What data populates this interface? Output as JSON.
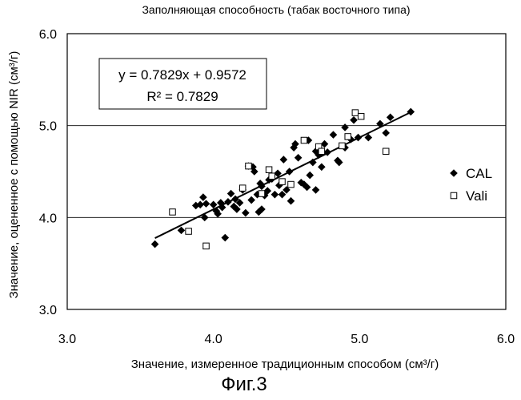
{
  "figure_label": "Фиг.3",
  "chart_data": {
    "type": "scatter",
    "title": "Заполняющая способность (табак восточного типа)",
    "xlabel": "Значение, измеренное традиционным способом (см³/г)",
    "ylabel": "Значение, оцененное с помощью NIR (см³/г)",
    "xlim": [
      3.0,
      6.0
    ],
    "ylim": [
      3.0,
      6.0
    ],
    "x_ticks": [
      "3.0",
      "4.0",
      "5.0",
      "6.0"
    ],
    "y_ticks": [
      "3.0",
      "4.0",
      "5.0",
      "6.0"
    ],
    "gridlines_y": [
      4.0,
      5.0,
      6.0
    ],
    "legend_position": "right",
    "equation": "y = 0.7829x + 0.9572",
    "r_squared": "R² = 0.7829",
    "trendline": {
      "slope": 0.7829,
      "intercept": 0.9572,
      "x_range": [
        3.6,
        5.35
      ]
    },
    "series": [
      {
        "name": "CAL",
        "marker": "diamond-filled",
        "points": [
          [
            3.6,
            3.71
          ],
          [
            3.78,
            3.86
          ],
          [
            3.88,
            4.13
          ],
          [
            3.91,
            4.14
          ],
          [
            3.93,
            4.22
          ],
          [
            3.94,
            4.0
          ],
          [
            3.95,
            4.15
          ],
          [
            4.0,
            4.14
          ],
          [
            4.02,
            4.07
          ],
          [
            4.03,
            4.04
          ],
          [
            4.05,
            4.16
          ],
          [
            4.06,
            4.11
          ],
          [
            4.08,
            3.78
          ],
          [
            4.1,
            4.17
          ],
          [
            4.12,
            4.26
          ],
          [
            4.14,
            4.12
          ],
          [
            4.15,
            4.2
          ],
          [
            4.16,
            4.09
          ],
          [
            4.18,
            4.16
          ],
          [
            4.2,
            4.3
          ],
          [
            4.22,
            4.05
          ],
          [
            4.24,
            4.56
          ],
          [
            4.26,
            4.19
          ],
          [
            4.27,
            4.55
          ],
          [
            4.28,
            4.5
          ],
          [
            4.3,
            4.25
          ],
          [
            4.31,
            4.06
          ],
          [
            4.32,
            4.37
          ],
          [
            4.33,
            4.34
          ],
          [
            4.33,
            4.09
          ],
          [
            4.35,
            4.24
          ],
          [
            4.37,
            4.29
          ],
          [
            4.38,
            4.41
          ],
          [
            4.4,
            4.42
          ],
          [
            4.42,
            4.25
          ],
          [
            4.44,
            4.48
          ],
          [
            4.45,
            4.35
          ],
          [
            4.47,
            4.25
          ],
          [
            4.48,
            4.63
          ],
          [
            4.5,
            4.3
          ],
          [
            4.52,
            4.5
          ],
          [
            4.53,
            4.18
          ],
          [
            4.55,
            4.76
          ],
          [
            4.56,
            4.8
          ],
          [
            4.58,
            4.65
          ],
          [
            4.6,
            4.38
          ],
          [
            4.62,
            4.36
          ],
          [
            4.64,
            4.33
          ],
          [
            4.65,
            4.84
          ],
          [
            4.66,
            4.46
          ],
          [
            4.68,
            4.6
          ],
          [
            4.7,
            4.3
          ],
          [
            4.7,
            4.72
          ],
          [
            4.72,
            4.68
          ],
          [
            4.74,
            4.55
          ],
          [
            4.76,
            4.8
          ],
          [
            4.78,
            4.71
          ],
          [
            4.82,
            4.9
          ],
          [
            4.85,
            4.62
          ],
          [
            4.86,
            4.6
          ],
          [
            4.9,
            4.98
          ],
          [
            4.9,
            4.76
          ],
          [
            4.94,
            4.85
          ],
          [
            4.96,
            5.06
          ],
          [
            4.99,
            4.87
          ],
          [
            5.06,
            4.87
          ],
          [
            5.14,
            5.02
          ],
          [
            5.18,
            4.92
          ],
          [
            5.21,
            5.09
          ],
          [
            5.35,
            5.15
          ]
        ]
      },
      {
        "name": "Vali",
        "marker": "square-open",
        "points": [
          [
            3.72,
            4.06
          ],
          [
            3.83,
            3.85
          ],
          [
            3.95,
            3.69
          ],
          [
            4.2,
            4.32
          ],
          [
            4.24,
            4.56
          ],
          [
            4.33,
            4.26
          ],
          [
            4.38,
            4.52
          ],
          [
            4.4,
            4.45
          ],
          [
            4.47,
            4.39
          ],
          [
            4.53,
            4.36
          ],
          [
            4.62,
            4.84
          ],
          [
            4.72,
            4.77
          ],
          [
            4.74,
            4.72
          ],
          [
            4.88,
            4.78
          ],
          [
            4.92,
            4.88
          ],
          [
            4.97,
            5.14
          ],
          [
            5.01,
            5.1
          ],
          [
            5.18,
            4.72
          ]
        ]
      }
    ]
  }
}
